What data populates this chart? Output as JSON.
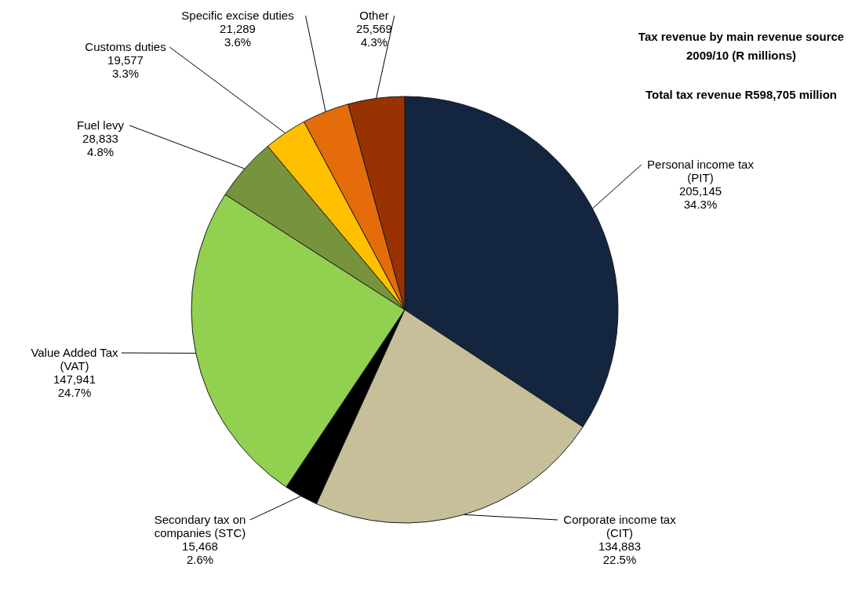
{
  "chart_data": {
    "type": "pie",
    "title": "Tax revenue by main revenue source\n2009/10 (R millions)",
    "subtitle": "Total tax revenue R598,705 million",
    "categories": [
      "Personal income tax\n(PIT)",
      "Corporate income tax\n(CIT)",
      "Secondary tax on\ncompanies (STC)",
      "Value Added Tax\n(VAT)",
      "Fuel levy",
      "Customs duties",
      "Specific excise duties",
      "Other"
    ],
    "values": [
      205145,
      134883,
      15468,
      147941,
      28833,
      19577,
      21289,
      25569
    ],
    "colors": [
      "#13253f",
      "#c6bf9a",
      "#000000",
      "#92d050",
      "#77933c",
      "#ffc000",
      "#e46c0a",
      "#983203"
    ],
    "value_labels": [
      "205,145\n34.3%",
      "134,883\n22.5%",
      "15,468\n2.6%",
      "147,941\n24.7%",
      "28,833\n4.8%",
      "19,577\n3.3%",
      "21,289\n3.6%",
      "25,569\n4.3%"
    ]
  }
}
